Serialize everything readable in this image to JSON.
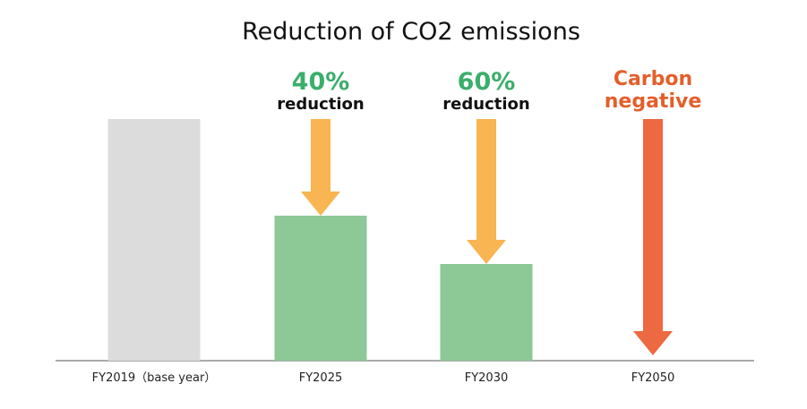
{
  "chart_data": {
    "type": "bar",
    "title": "Reduction of CO2 emissions",
    "xlabel": "",
    "ylabel": "",
    "categories": [
      "FY2019（base year）",
      "FY2025",
      "FY2030",
      "FY2050"
    ],
    "values": [
      100,
      60,
      40,
      0
    ],
    "ylim": [
      0,
      100
    ],
    "grid": false,
    "legend": "none",
    "bar_colors": [
      "#dcdcdc",
      "#8cc996",
      "#8cc996",
      null
    ],
    "annotations": [
      {
        "category_index": 1,
        "big_text": "40%",
        "small_text": "reduction",
        "big_color": "#3aae6a",
        "arrow_color": "#f8b551"
      },
      {
        "category_index": 2,
        "big_text": "60%",
        "small_text": "reduction",
        "big_color": "#3aae6a",
        "arrow_color": "#f8b551"
      },
      {
        "category_index": 3,
        "lines": [
          "Carbon",
          "negative"
        ],
        "text_color": "#e35f2c",
        "arrow_color": "#ec6941"
      }
    ]
  }
}
